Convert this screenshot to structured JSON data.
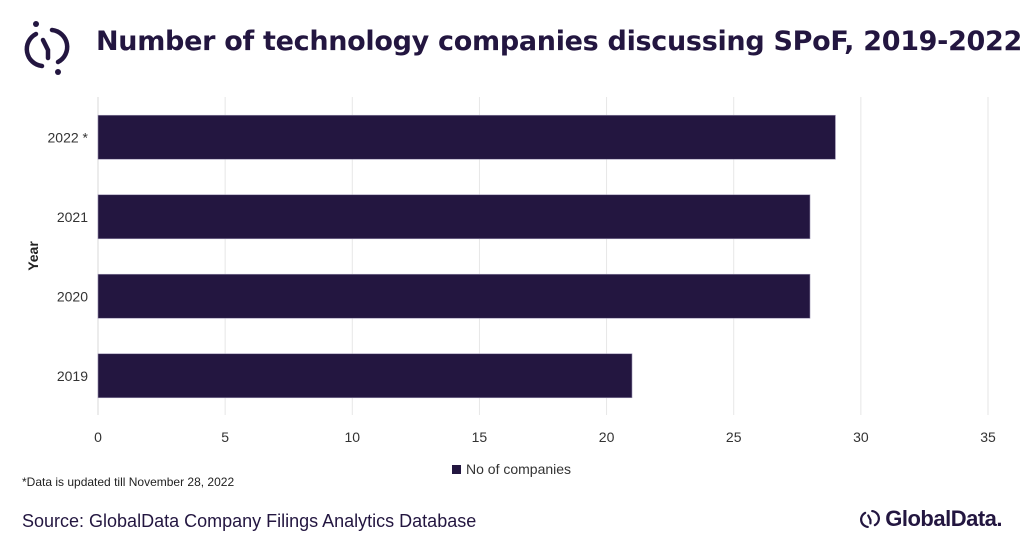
{
  "title": "Number of technology companies discussing SPoF, 2019-2022",
  "footnote": "*Data is updated till November 28, 2022",
  "source": "Source: GlobalData Company Filings Analytics Database",
  "brand": "GlobalData.",
  "colors": {
    "bar": "#231640",
    "grid": "#e6e6e6",
    "text": "#222222"
  },
  "chart_data": {
    "type": "bar",
    "orientation": "horizontal",
    "title": "Number of technology companies discussing SPoF, 2019-2022",
    "categories": [
      "2022 *",
      "2021",
      "2020",
      "2019"
    ],
    "series": [
      {
        "name": "No of companies",
        "values": [
          29,
          28,
          28,
          21
        ]
      }
    ],
    "ylabel": "Year",
    "xlabel": "",
    "xlim": [
      0,
      35
    ],
    "xticks": [
      0,
      5,
      10,
      15,
      20,
      25,
      30,
      35
    ],
    "grid": true,
    "legend": "bottom"
  }
}
